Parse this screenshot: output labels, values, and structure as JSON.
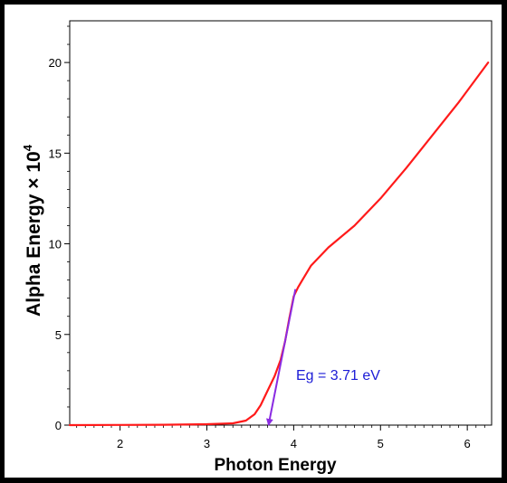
{
  "chart_data": {
    "type": "line",
    "title": "",
    "xlabel": "Photon Energy",
    "ylabel_main": "Alpha Energy × 10",
    "ylabel_exponent": "4",
    "xlim": [
      1.42,
      6.28
    ],
    "ylim": [
      0,
      22.3
    ],
    "x_ticks": [
      2,
      3,
      4,
      5,
      6
    ],
    "y_ticks": [
      0,
      5,
      10,
      15,
      20
    ],
    "grid": false,
    "series": [
      {
        "color": "#ff1a1a",
        "x": [
          1.42,
          2.0,
          2.5,
          3.0,
          3.3,
          3.45,
          3.55,
          3.62,
          3.7,
          3.78,
          3.85,
          3.9,
          3.95,
          4.0,
          4.05,
          4.1,
          4.2,
          4.4,
          4.7,
          5.0,
          5.3,
          5.6,
          5.9,
          6.24
        ],
        "y": [
          0.0,
          0.01,
          0.02,
          0.05,
          0.1,
          0.25,
          0.6,
          1.1,
          1.9,
          2.7,
          3.6,
          4.6,
          5.9,
          7.1,
          7.6,
          8.0,
          8.8,
          9.8,
          11.0,
          12.5,
          14.2,
          16.0,
          17.8,
          20.0
        ]
      }
    ],
    "annotation": {
      "text": "Eg = 3.71 eV",
      "arrow_color": "#8a2be2",
      "text_color": "#1b1bd6",
      "line_from": [
        4.02,
        7.5
      ],
      "line_to": [
        3.71,
        0.0
      ]
    }
  }
}
